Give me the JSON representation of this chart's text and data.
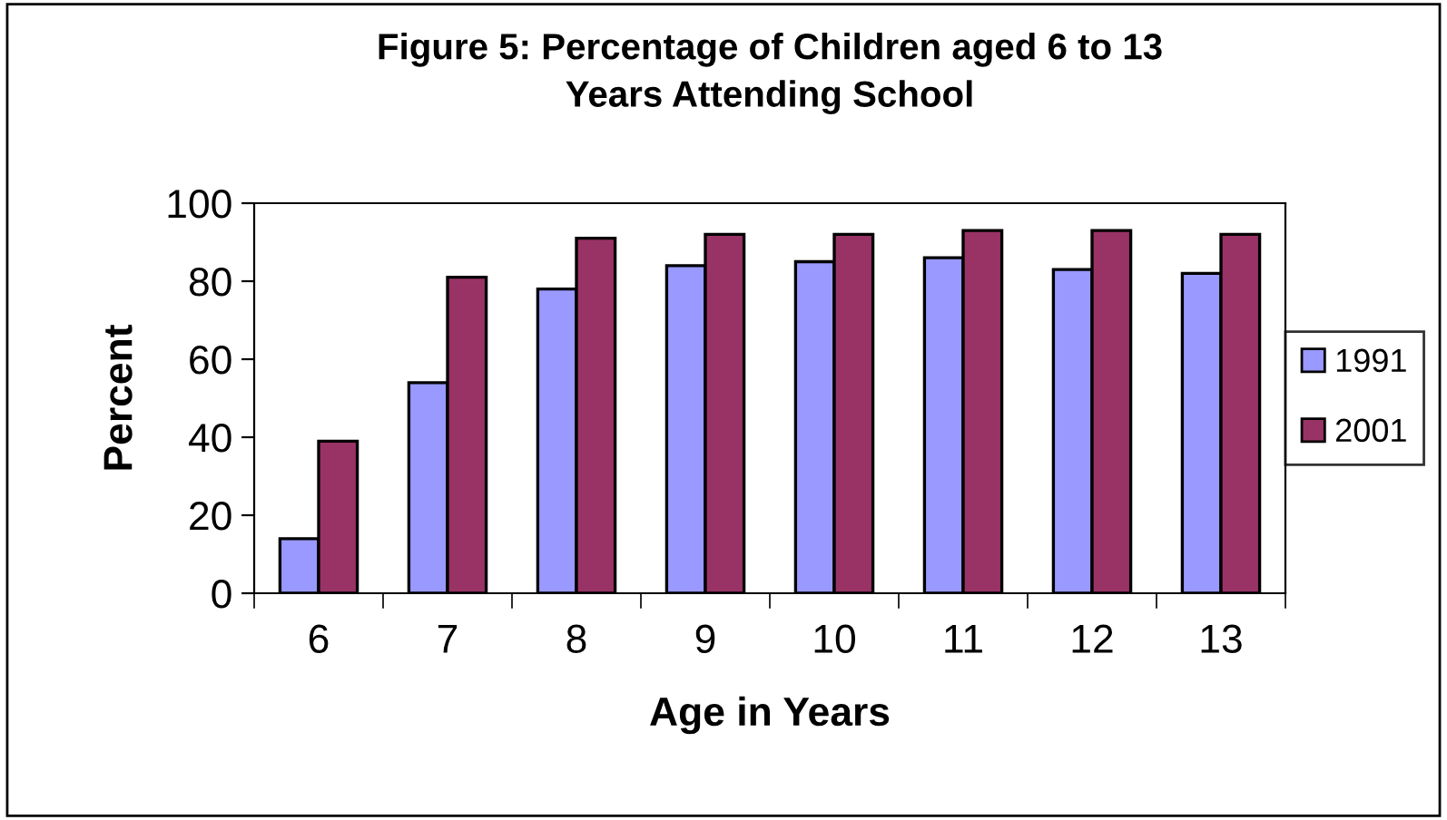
{
  "chart_data": {
    "type": "bar",
    "title": "Figure 5: Percentage of Children aged 6 to 13\nYears Attending School",
    "xlabel": "Age in Years",
    "ylabel": "Percent",
    "categories": [
      "6",
      "7",
      "8",
      "9",
      "10",
      "11",
      "12",
      "13"
    ],
    "series": [
      {
        "name": "1991",
        "color": "#9999ff",
        "values": [
          14,
          54,
          78,
          84,
          85,
          86,
          83,
          82
        ]
      },
      {
        "name": "2001",
        "color": "#993366",
        "values": [
          39,
          81,
          91,
          92,
          92,
          93,
          93,
          92
        ]
      }
    ],
    "ylim": [
      0,
      100
    ],
    "yticks": [
      0,
      20,
      40,
      60,
      80,
      100
    ],
    "grid": false,
    "legend": "right"
  }
}
